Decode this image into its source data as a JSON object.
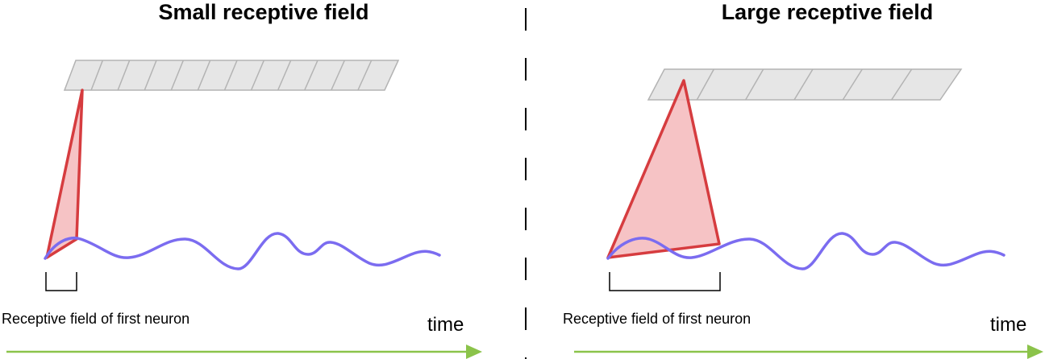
{
  "panels": [
    {
      "title": "Small receptive field",
      "caption": "Receptive field of first neuron",
      "time_label": "time",
      "layer_cells": 12
    },
    {
      "title": "Large receptive field",
      "caption": "Receptive field of first neuron",
      "time_label": "time",
      "layer_cells": 6
    }
  ],
  "colors": {
    "layer_fill": "#e6e6e6",
    "layer_stroke": "#b3b3b3",
    "cone_fill": "#f4b9bb",
    "cone_stroke": "#d63c3f",
    "signal": "#7b6cf0",
    "bracket": "#000000",
    "divider": "#000000",
    "time_arrow": "#8bc34a"
  }
}
